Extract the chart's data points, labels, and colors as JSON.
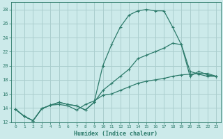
{
  "xlabel": "Humidex (Indice chaleur)",
  "bg_color": "#cceaea",
  "grid_color": "#aacece",
  "line_color": "#2d7b6b",
  "xlim": [
    -0.5,
    23.5
  ],
  "ylim": [
    12,
    29
  ],
  "xticks": [
    0,
    1,
    2,
    3,
    4,
    5,
    6,
    7,
    8,
    9,
    10,
    11,
    12,
    13,
    14,
    15,
    16,
    17,
    18,
    19,
    20,
    21,
    22,
    23
  ],
  "yticks": [
    12,
    14,
    16,
    18,
    20,
    22,
    24,
    26,
    28
  ],
  "curve1_x": [
    0,
    1,
    2,
    3,
    4,
    5,
    6,
    7,
    8,
    9,
    10,
    11,
    12,
    13,
    14,
    15,
    16,
    17,
    18,
    19,
    20,
    21,
    22,
    23
  ],
  "curve1_y": [
    13.8,
    12.8,
    12.2,
    13.9,
    14.4,
    14.8,
    14.5,
    14.3,
    13.7,
    14.8,
    20.0,
    23.0,
    25.5,
    27.2,
    27.8,
    28.0,
    27.8,
    27.8,
    25.5,
    23.0,
    19.2,
    18.8,
    18.5,
    18.5
  ],
  "curve2_x": [
    0,
    1,
    2,
    3,
    4,
    5,
    6,
    7,
    8,
    9,
    10,
    11,
    12,
    13,
    14,
    15,
    16,
    17,
    18,
    19,
    20,
    21,
    22,
    23
  ],
  "curve2_y": [
    13.8,
    12.8,
    12.2,
    13.9,
    14.4,
    14.8,
    14.5,
    14.3,
    13.7,
    14.8,
    16.5,
    17.5,
    18.5,
    19.5,
    21.0,
    21.5,
    22.0,
    22.5,
    23.2,
    23.0,
    18.5,
    19.2,
    18.7,
    18.5
  ],
  "curve3_x": [
    0,
    1,
    2,
    3,
    4,
    5,
    6,
    7,
    8,
    9,
    10,
    11,
    12,
    13,
    14,
    15,
    16,
    17,
    18,
    19,
    20,
    21,
    22,
    23
  ],
  "curve3_y": [
    13.8,
    12.8,
    12.2,
    13.9,
    14.4,
    14.5,
    14.3,
    13.7,
    14.5,
    15.0,
    15.8,
    16.0,
    16.5,
    17.0,
    17.5,
    17.8,
    18.0,
    18.2,
    18.5,
    18.7,
    18.8,
    18.9,
    18.9,
    18.5
  ]
}
